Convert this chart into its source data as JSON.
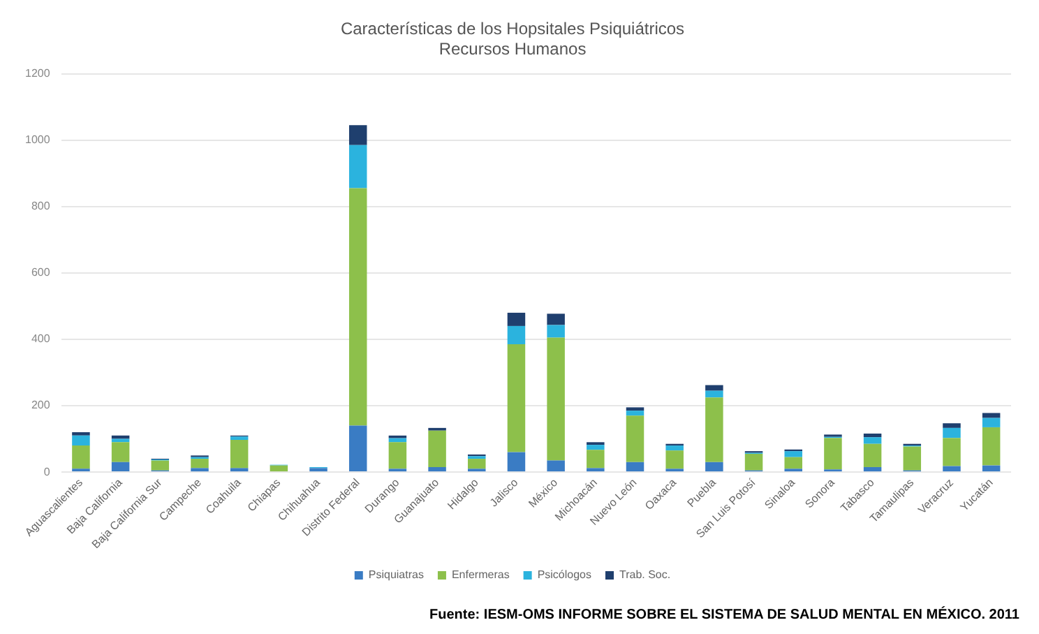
{
  "chart_data": {
    "type": "bar",
    "stacked": true,
    "title": [
      "Características de los Hopsitales Psiquiátricos",
      "Recursos Humanos"
    ],
    "categories": [
      "Aguascalientes",
      "Baja California",
      "Baja California Sur",
      "Campeche",
      "Coahuila",
      "Chiapas",
      "Chihuahua",
      "Distrito Federal",
      "Durango",
      "Guanajuato",
      "Hidalgo",
      "Jalisco",
      "México",
      "Michoacán",
      "Nuevo León",
      "Oaxaca",
      "Puebla",
      "San Luis Potosí",
      "Sinaloa",
      "Sonora",
      "Tabasco",
      "Tamaulipas",
      "Veracruz",
      "Yucatán"
    ],
    "series": [
      {
        "name": "Psiquiatras",
        "color": "#3a7cc4",
        "values": [
          10,
          30,
          5,
          12,
          12,
          null,
          12,
          140,
          10,
          15,
          10,
          60,
          35,
          12,
          30,
          10,
          30,
          5,
          10,
          8,
          15,
          5,
          18,
          20
        ]
      },
      {
        "name": "Enfermeras",
        "color": "#8dc04b",
        "values": [
          70,
          60,
          30,
          28,
          85,
          20,
          0,
          715,
          80,
          110,
          30,
          325,
          370,
          55,
          140,
          55,
          195,
          50,
          35,
          95,
          70,
          72,
          85,
          115
        ]
      },
      {
        "name": "Psicólogos",
        "color": "#2bb3de",
        "values": [
          30,
          10,
          3,
          5,
          10,
          2,
          3,
          130,
          12,
          0,
          8,
          55,
          38,
          15,
          15,
          15,
          20,
          3,
          18,
          3,
          20,
          3,
          30,
          28
        ]
      },
      {
        "name": "Trab. Soc.",
        "color": "#1f3f6e",
        "values": [
          10,
          10,
          2,
          5,
          3,
          0,
          0,
          60,
          8,
          8,
          5,
          40,
          34,
          8,
          10,
          5,
          17,
          5,
          5,
          7,
          11,
          5,
          14,
          15
        ]
      }
    ],
    "ylim": [
      0,
      1200
    ],
    "yticks": [
      0,
      200,
      400,
      600,
      800,
      1000,
      1200
    ],
    "grid": "y",
    "legend": "bottom",
    "annotations": [
      "Fuente: IESM-OMS INFORME SOBRE EL SISTEMA DE SALUD MENTAL EN MÉXICO. 2011"
    ]
  }
}
